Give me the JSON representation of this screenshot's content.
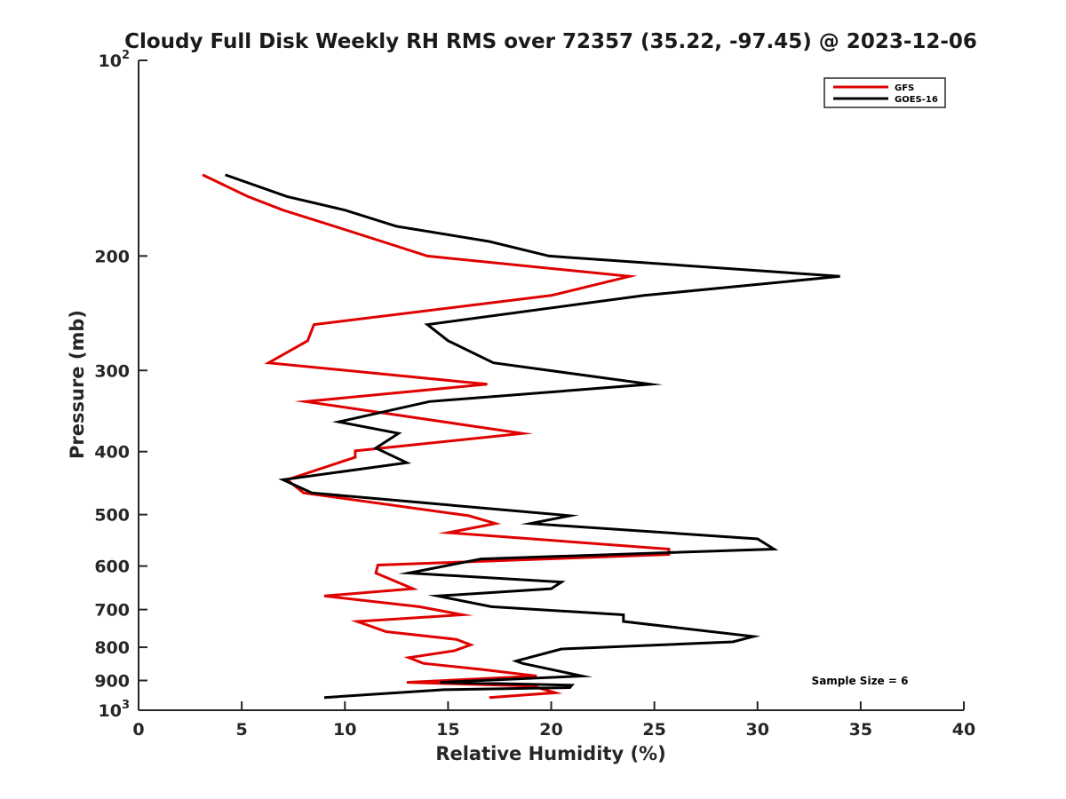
{
  "chart_data": {
    "type": "line",
    "title": "Cloudy Full Disk Weekly RH RMS over 72357 (35.22, -97.45) @ 2023-12-06",
    "xlabel": "Relative Humidity (%)",
    "ylabel": "Pressure (mb)",
    "xlim": [
      0,
      40
    ],
    "ylim": [
      100,
      1000
    ],
    "y_scale": "log",
    "y_reversed": true,
    "x_ticks": [
      0,
      5,
      10,
      15,
      20,
      25,
      30,
      35,
      40
    ],
    "y_ticks": [
      {
        "value": 100,
        "label": "10",
        "sup": "2"
      },
      {
        "value": 200,
        "label": "200"
      },
      {
        "value": 300,
        "label": "300"
      },
      {
        "value": 400,
        "label": "400"
      },
      {
        "value": 500,
        "label": "500"
      },
      {
        "value": 600,
        "label": "600"
      },
      {
        "value": 700,
        "label": "700"
      },
      {
        "value": 800,
        "label": "800"
      },
      {
        "value": 900,
        "label": "900"
      },
      {
        "value": 1000,
        "label": "10",
        "sup": "3"
      }
    ],
    "grid": false,
    "legend_position": "top-right",
    "annotation": "Sample Size = 6",
    "series": [
      {
        "name": "GFS",
        "color": "#e00000",
        "points": [
          [
            3.1,
            150
          ],
          [
            5.3,
            162
          ],
          [
            7.0,
            170
          ],
          [
            9.5,
            180
          ],
          [
            11.8,
            190
          ],
          [
            14.0,
            200
          ],
          [
            23.8,
            215
          ],
          [
            20.0,
            230
          ],
          [
            8.5,
            255
          ],
          [
            8.2,
            270
          ],
          [
            6.3,
            292
          ],
          [
            16.9,
            315
          ],
          [
            8.1,
            335
          ],
          [
            18.6,
            375
          ],
          [
            10.5,
            399
          ],
          [
            10.5,
            408
          ],
          [
            7.2,
            442
          ],
          [
            8.0,
            463
          ],
          [
            16.0,
            502
          ],
          [
            17.3,
            516
          ],
          [
            15.0,
            533
          ],
          [
            25.7,
            565
          ],
          [
            25.7,
            576
          ],
          [
            11.6,
            598
          ],
          [
            11.5,
            615
          ],
          [
            13.3,
            650
          ],
          [
            9.0,
            667
          ],
          [
            13.6,
            693
          ],
          [
            15.7,
            713
          ],
          [
            10.6,
            730
          ],
          [
            12.0,
            757
          ],
          [
            15.4,
            778
          ],
          [
            16.1,
            793
          ],
          [
            15.3,
            810
          ],
          [
            13.1,
            830
          ],
          [
            13.8,
            847
          ],
          [
            16.7,
            866
          ],
          [
            19.3,
            886
          ],
          [
            13.0,
            906
          ],
          [
            19.1,
            918
          ],
          [
            19.7,
            930
          ],
          [
            20.2,
            940
          ],
          [
            17.0,
            956
          ]
        ]
      },
      {
        "name": "GOES-16",
        "color": "#000000",
        "points": [
          [
            4.2,
            150
          ],
          [
            7.2,
            162
          ],
          [
            10.0,
            170
          ],
          [
            12.5,
            180
          ],
          [
            17.0,
            190
          ],
          [
            19.9,
            200
          ],
          [
            34.0,
            215
          ],
          [
            24.5,
            230
          ],
          [
            14.0,
            255
          ],
          [
            15.0,
            270
          ],
          [
            17.2,
            292
          ],
          [
            24.8,
            315
          ],
          [
            14.1,
            335
          ],
          [
            9.7,
            360
          ],
          [
            12.6,
            375
          ],
          [
            11.5,
            395
          ],
          [
            13.0,
            416
          ],
          [
            7.0,
            442
          ],
          [
            8.4,
            463
          ],
          [
            20.9,
            502
          ],
          [
            19.0,
            516
          ],
          [
            30.0,
            545
          ],
          [
            30.8,
            565
          ],
          [
            16.6,
            585
          ],
          [
            13.1,
            615
          ],
          [
            20.5,
            635
          ],
          [
            20.0,
            650
          ],
          [
            14.5,
            667
          ],
          [
            17.1,
            693
          ],
          [
            23.5,
            713
          ],
          [
            23.5,
            730
          ],
          [
            29.8,
            770
          ],
          [
            28.8,
            785
          ],
          [
            20.5,
            805
          ],
          [
            18.3,
            840
          ],
          [
            18.6,
            847
          ],
          [
            21.5,
            886
          ],
          [
            14.6,
            906
          ],
          [
            21.0,
            915
          ],
          [
            20.9,
            923
          ],
          [
            14.8,
            930
          ],
          [
            9.0,
            956
          ]
        ]
      }
    ]
  }
}
